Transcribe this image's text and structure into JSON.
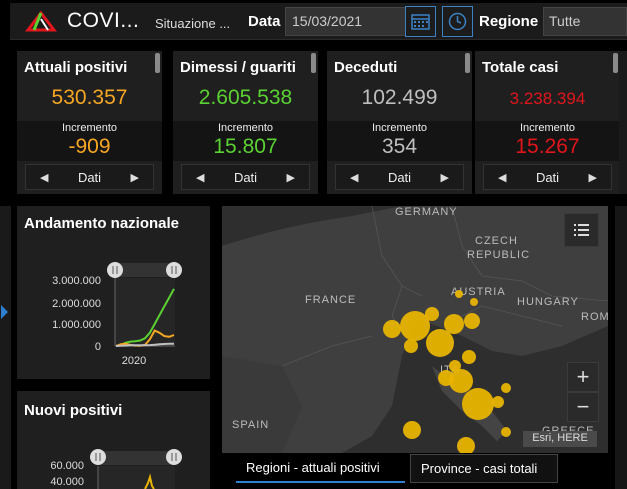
{
  "header": {
    "title": "COVI...",
    "subtitle": "Situazione ...",
    "date_label": "Data",
    "date_value": "15/03/2021",
    "region_label": "Regione",
    "region_value": "Tutte"
  },
  "cards": [
    {
      "title": "Attuali positivi",
      "value": "530.357",
      "increment_label": "Incremento",
      "increment": "-909",
      "nav_label": "Dati",
      "value_color": "#f5a623",
      "increment_color": "#f5a623"
    },
    {
      "title": "Dimessi / guariti",
      "value": "2.605.538",
      "increment_label": "Incremento",
      "increment": "15.807",
      "nav_label": "Dati",
      "value_color": "#5ad232",
      "increment_color": "#5ad232"
    },
    {
      "title": "Deceduti",
      "value": "102.499",
      "increment_label": "Incremento",
      "increment": "354",
      "nav_label": "Dati",
      "value_color": "#bfbfbf",
      "increment_color": "#bfbfbf"
    },
    {
      "title": "Totale casi",
      "value": "3.238.394",
      "increment_label": "Incremento",
      "increment": "15.267",
      "nav_label": "Dati",
      "value_color": "#e0161c",
      "increment_color": "#e0161c"
    }
  ],
  "trend1": {
    "title": "Andamento nazionale",
    "chart_data": {
      "type": "line",
      "title": "Andamento nazionale",
      "y_ticks": [
        "3.000.000",
        "2.000.000",
        "1.000.000",
        "0"
      ],
      "x_ticks": [
        "2020"
      ],
      "series": [
        {
          "color": "#5ad232",
          "values": [
            0,
            0.05,
            0.15,
            0.2,
            0.22,
            0.25,
            0.35,
            0.6,
            1.0,
            1.4,
            1.8,
            2.2,
            2.6
          ]
        },
        {
          "color": "#f5a623",
          "values": [
            0,
            0.08,
            0.1,
            0.05,
            0.02,
            0.01,
            0.05,
            0.3,
            0.7,
            0.6,
            0.45,
            0.42,
            0.5
          ]
        },
        {
          "color": "#bfbfbf",
          "values": [
            0,
            0.01,
            0.02,
            0.03,
            0.035,
            0.035,
            0.036,
            0.04,
            0.06,
            0.08,
            0.09,
            0.1,
            0.1
          ]
        }
      ]
    }
  },
  "trend2": {
    "title": "Nuovi positivi",
    "y_ticks": [
      "60.000",
      "40.000"
    ]
  },
  "map": {
    "labels": [
      "GERMANY",
      "CZECH",
      "REPUBLIC",
      "FRANCE",
      "AUSTRIA",
      "HUNGARY",
      "ROM",
      "SPAIN",
      "ITA",
      "GREECE"
    ],
    "attribution": "Esri, HERE",
    "zoom_in": "+",
    "zoom_out": "−",
    "bubble_color": "#e8b400"
  },
  "tabs": [
    {
      "label": "Regioni - attuali positivi"
    },
    {
      "label": "Province - casi totali"
    }
  ]
}
